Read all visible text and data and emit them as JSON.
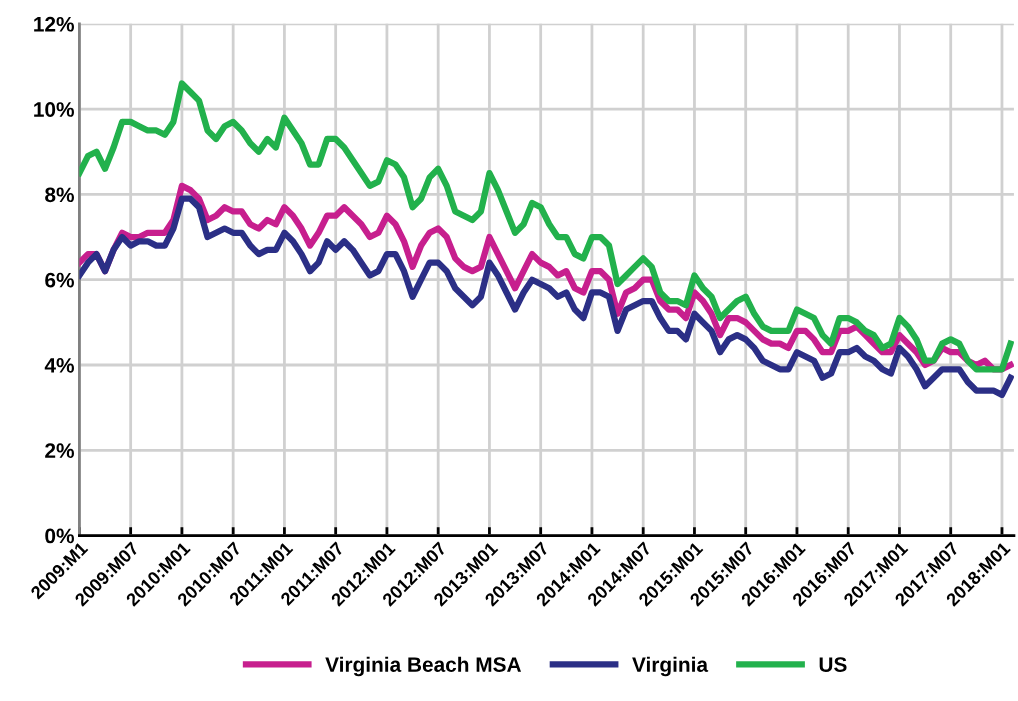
{
  "chart_data": {
    "type": "line",
    "categories": [
      "2009:M1",
      null,
      null,
      null,
      null,
      null,
      "2009:M07",
      null,
      null,
      null,
      null,
      null,
      "2010:M01",
      null,
      null,
      null,
      null,
      null,
      "2010:M07",
      null,
      null,
      null,
      null,
      null,
      "2011:M01",
      null,
      null,
      null,
      null,
      null,
      "2011:M07",
      null,
      null,
      null,
      null,
      null,
      "2012:M01",
      null,
      null,
      null,
      null,
      null,
      "2012:M07",
      null,
      null,
      null,
      null,
      null,
      "2013:M01",
      null,
      null,
      null,
      null,
      null,
      "2013:M07",
      null,
      null,
      null,
      null,
      null,
      "2014:M01",
      null,
      null,
      null,
      null,
      null,
      "2014:M07",
      null,
      null,
      null,
      null,
      null,
      "2015:M01",
      null,
      null,
      null,
      null,
      null,
      "2015:M07",
      null,
      null,
      null,
      null,
      null,
      "2016:M01",
      null,
      null,
      null,
      null,
      null,
      "2016:M07",
      null,
      null,
      null,
      null,
      null,
      "2017:M01",
      null,
      null,
      null,
      null,
      null,
      "2017:M07",
      null,
      null,
      null,
      null,
      null,
      "2018:M01",
      null
    ],
    "series": [
      {
        "name": "Virginia Beach MSA",
        "color": "#c71f8e",
        "values": [
          6.4,
          6.6,
          6.6,
          6.2,
          6.7,
          7.1,
          7.0,
          7.0,
          7.1,
          7.1,
          7.1,
          7.4,
          8.2,
          8.1,
          7.9,
          7.4,
          7.5,
          7.7,
          7.6,
          7.6,
          7.3,
          7.2,
          7.4,
          7.3,
          7.7,
          7.5,
          7.2,
          6.8,
          7.1,
          7.5,
          7.5,
          7.7,
          7.5,
          7.3,
          7.0,
          7.1,
          7.5,
          7.3,
          6.9,
          6.3,
          6.8,
          7.1,
          7.2,
          7.0,
          6.5,
          6.3,
          6.2,
          6.3,
          7.0,
          6.6,
          6.2,
          5.8,
          6.2,
          6.6,
          6.4,
          6.3,
          6.1,
          6.2,
          5.8,
          5.7,
          6.2,
          6.2,
          6.0,
          5.2,
          5.7,
          5.8,
          6.0,
          6.0,
          5.5,
          5.3,
          5.3,
          5.1,
          5.7,
          5.5,
          5.2,
          4.7,
          5.1,
          5.1,
          5.0,
          4.8,
          4.6,
          4.5,
          4.5,
          4.4,
          4.8,
          4.8,
          4.6,
          4.3,
          4.3,
          4.8,
          4.8,
          4.9,
          4.7,
          4.5,
          4.3,
          4.3,
          4.7,
          4.5,
          4.3,
          4.0,
          4.1,
          4.4,
          4.3,
          4.3,
          4.1,
          4.0,
          4.1,
          3.9,
          3.9,
          4.0
        ]
      },
      {
        "name": "Virginia",
        "color": "#2b2f86",
        "values": [
          6.1,
          6.4,
          6.6,
          6.2,
          6.7,
          7.0,
          6.8,
          6.9,
          6.9,
          6.8,
          6.8,
          7.2,
          7.9,
          7.9,
          7.7,
          7.0,
          7.1,
          7.2,
          7.1,
          7.1,
          6.8,
          6.6,
          6.7,
          6.7,
          7.1,
          6.9,
          6.6,
          6.2,
          6.4,
          6.9,
          6.7,
          6.9,
          6.7,
          6.4,
          6.1,
          6.2,
          6.6,
          6.6,
          6.2,
          5.6,
          6.0,
          6.4,
          6.4,
          6.2,
          5.8,
          5.6,
          5.4,
          5.6,
          6.4,
          6.1,
          5.7,
          5.3,
          5.7,
          6.0,
          5.9,
          5.8,
          5.6,
          5.7,
          5.3,
          5.1,
          5.7,
          5.7,
          5.6,
          4.8,
          5.3,
          5.4,
          5.5,
          5.5,
          5.1,
          4.8,
          4.8,
          4.6,
          5.2,
          5.0,
          4.8,
          4.3,
          4.6,
          4.7,
          4.6,
          4.4,
          4.1,
          4.0,
          3.9,
          3.9,
          4.3,
          4.2,
          4.1,
          3.7,
          3.8,
          4.3,
          4.3,
          4.4,
          4.2,
          4.1,
          3.9,
          3.8,
          4.4,
          4.2,
          3.9,
          3.5,
          3.7,
          3.9,
          3.9,
          3.9,
          3.6,
          3.4,
          3.4,
          3.4,
          3.3,
          3.7
        ]
      },
      {
        "name": "US",
        "color": "#22b14c",
        "values": [
          8.5,
          8.9,
          9.0,
          8.6,
          9.1,
          9.7,
          9.7,
          9.6,
          9.5,
          9.5,
          9.4,
          9.7,
          10.6,
          10.4,
          10.2,
          9.5,
          9.3,
          9.6,
          9.7,
          9.5,
          9.2,
          9.0,
          9.3,
          9.1,
          9.8,
          9.5,
          9.2,
          8.7,
          8.7,
          9.3,
          9.3,
          9.1,
          8.8,
          8.5,
          8.2,
          8.3,
          8.8,
          8.7,
          8.4,
          7.7,
          7.9,
          8.4,
          8.6,
          8.2,
          7.6,
          7.5,
          7.4,
          7.6,
          8.5,
          8.1,
          7.6,
          7.1,
          7.3,
          7.8,
          7.7,
          7.3,
          7.0,
          7.0,
          6.6,
          6.5,
          7.0,
          7.0,
          6.8,
          5.9,
          6.1,
          6.3,
          6.5,
          6.3,
          5.7,
          5.5,
          5.5,
          5.4,
          6.1,
          5.8,
          5.6,
          5.1,
          5.3,
          5.5,
          5.6,
          5.2,
          4.9,
          4.8,
          4.8,
          4.8,
          5.3,
          5.2,
          5.1,
          4.7,
          4.5,
          5.1,
          5.1,
          5.0,
          4.8,
          4.7,
          4.4,
          4.5,
          5.1,
          4.9,
          4.6,
          4.1,
          4.1,
          4.5,
          4.6,
          4.5,
          4.1,
          3.9,
          3.9,
          3.9,
          3.9,
          4.5
        ]
      }
    ],
    "ylim": [
      0,
      12
    ],
    "yticks": [
      {
        "value": 0,
        "label": "0%"
      },
      {
        "value": 2,
        "label": "2%"
      },
      {
        "value": 4,
        "label": "4%"
      },
      {
        "value": 6,
        "label": "6%"
      },
      {
        "value": 8,
        "label": "8%"
      },
      {
        "value": 10,
        "label": "10%"
      },
      {
        "value": 12,
        "label": "12%"
      }
    ],
    "grid": true,
    "legend": "bottom",
    "marker": "none",
    "line_style": "solid"
  }
}
